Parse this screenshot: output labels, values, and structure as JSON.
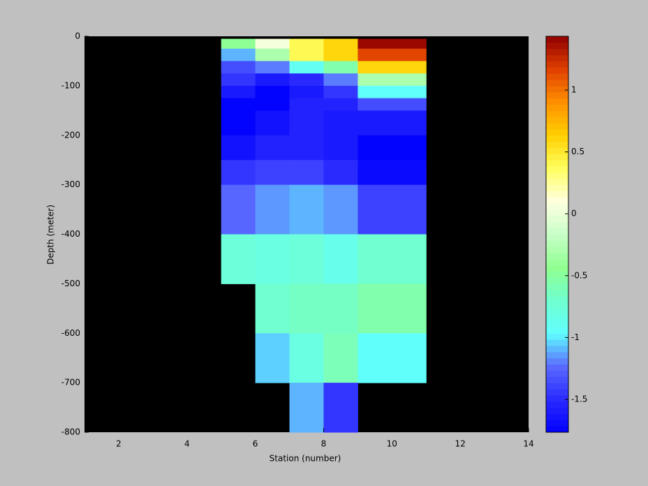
{
  "chart_data": {
    "type": "heatmap",
    "xlabel": "Station (number)",
    "ylabel": "Depth (meter)",
    "xlim": [
      1,
      14
    ],
    "ylim": [
      -800,
      0
    ],
    "xticks": [
      2,
      4,
      6,
      8,
      10,
      12,
      14
    ],
    "yticks": [
      -800,
      -700,
      -600,
      -500,
      -400,
      -300,
      -200,
      -100,
      0
    ],
    "x_edges": [
      5,
      6,
      7,
      8,
      9,
      11
    ],
    "y_edges": [
      -5,
      -25,
      -50,
      -75,
      -100,
      -125,
      -150,
      -200,
      -250,
      -300,
      -400,
      -500,
      -600,
      -700,
      -800
    ],
    "values": [
      [
        -0.45,
        0.05,
        0.4,
        0.6,
        1.4
      ],
      [
        -1.1,
        -0.3,
        0.4,
        0.6,
        1.15
      ],
      [
        -1.35,
        -1.2,
        -0.9,
        -0.55,
        0.6
      ],
      [
        -1.45,
        -1.6,
        -1.5,
        -1.2,
        -0.3
      ],
      [
        -1.6,
        -1.75,
        -1.6,
        -1.45,
        -0.95
      ],
      [
        -1.75,
        -1.75,
        -1.55,
        -1.55,
        -1.35
      ],
      [
        -1.75,
        -1.65,
        -1.55,
        -1.6,
        -1.6
      ],
      [
        -1.65,
        -1.55,
        -1.55,
        -1.6,
        -1.75
      ],
      [
        -1.45,
        -1.4,
        -1.4,
        -1.5,
        -1.7
      ],
      [
        -1.25,
        -1.15,
        -1.1,
        -1.15,
        -1.4
      ],
      [
        -0.75,
        -0.8,
        -0.75,
        -0.85,
        -0.7
      ],
      [
        null,
        -0.7,
        -0.65,
        -0.65,
        -0.55
      ],
      [
        null,
        -1.05,
        -0.8,
        -0.6,
        -0.95
      ],
      [
        null,
        null,
        -1.1,
        -1.45,
        null
      ]
    ],
    "axes_color": "#000000",
    "clim": [
      -1.765,
      1.434
    ],
    "cticks": [
      -1.5,
      -1,
      -0.5,
      0,
      0.5,
      1
    ],
    "colormap": [
      "#0000ff",
      "#2a2aff",
      "#5a6aff",
      "#60ffff",
      "#70ffd0",
      "#90ff90",
      "#c8ffc8",
      "#ffffe0",
      "#ffff60",
      "#ffd000",
      "#ff9000",
      "#e04000",
      "#900000"
    ]
  }
}
